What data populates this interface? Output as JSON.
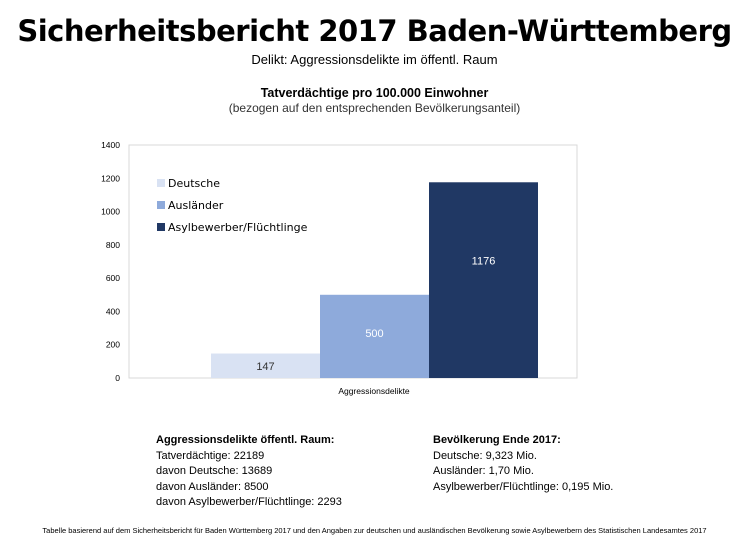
{
  "header": {
    "title": "Sicherheitsbericht 2017 Baden-Württemberg",
    "subtitle": "Delikt: Aggressionsdelikte im öffentl. Raum"
  },
  "chart_data": {
    "type": "bar",
    "title": "Tatverdächtige pro 100.000 Einwohner",
    "subtitle": "(bezogen auf den entsprechenden Bevölkerungsanteil)",
    "categories": [
      "Aggressionsdelikte"
    ],
    "series": [
      {
        "name": "Deutsche",
        "values": [
          147
        ],
        "color": "#d9e2f3",
        "label_color": "#333333"
      },
      {
        "name": "Ausländer",
        "values": [
          500
        ],
        "color": "#8eaadb",
        "label_color": "#ffffff"
      },
      {
        "name": "Asylbewerber/Flüchtlinge",
        "values": [
          1176
        ],
        "color": "#203864",
        "label_color": "#ffffff"
      }
    ],
    "ylim": [
      0,
      1400
    ],
    "yticks": [
      "0",
      "200",
      "400",
      "600",
      "800",
      "1000",
      "1200",
      "1400"
    ],
    "grid": false,
    "legend": "top-left"
  },
  "info_left": {
    "heading": "Aggressionsdelikte öffentl. Raum:",
    "lines": [
      "Tatverdächtige: 22189",
      "davon Deutsche: 13689",
      "davon Ausländer: 8500",
      "davon Asylbewerber/Flüchtlinge: 2293"
    ]
  },
  "info_right": {
    "heading": "Bevölkerung Ende 2017:",
    "lines": [
      "Deutsche: 9,323 Mio.",
      "Ausländer: 1,70 Mio.",
      "Asylbewerber/Flüchtlinge: 0,195 Mio."
    ]
  },
  "footnote": "Tabelle basierend auf dem Sicherheitsbericht für Baden Württemberg 2017 und den Angaben zur deutschen und ausländischen Bevölkerung sowie Asylbewerbern des Statistischen Landesamtes 2017"
}
